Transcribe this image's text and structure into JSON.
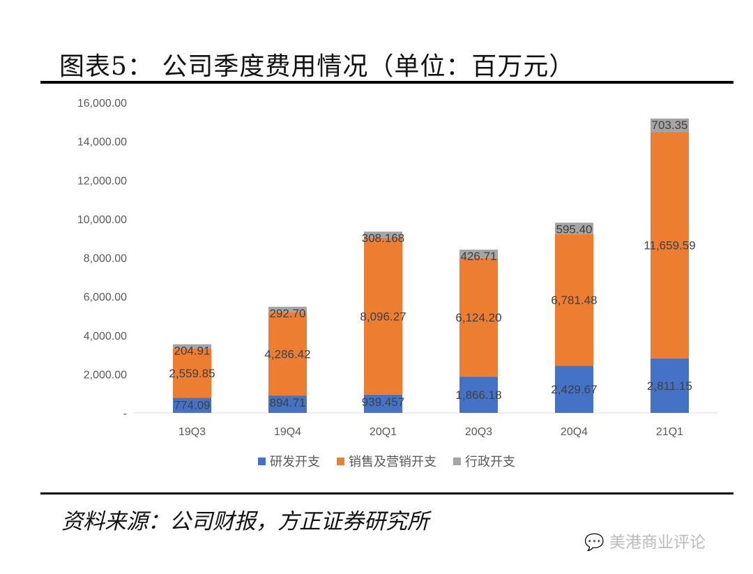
{
  "title": "图表5： 公司季度费用情况（单位：百万元）",
  "source": "资料来源：公司财报，方正证券研究所",
  "watermark": "美港商业评论",
  "chart_data": {
    "type": "bar",
    "stacked": true,
    "categories": [
      "19Q3",
      "19Q4",
      "20Q1",
      "20Q3",
      "20Q4",
      "21Q1"
    ],
    "series": [
      {
        "name": "研发开支",
        "color": "#4472C4",
        "values": [
          774.09,
          894.71,
          939.457,
          1866.18,
          2429.67,
          2811.15
        ],
        "labels": [
          "774.09",
          "894.71",
          "939.457",
          "1,866.18",
          "2,429.67",
          "2,811.15"
        ]
      },
      {
        "name": "销售及营销开支",
        "color": "#ED7D31",
        "values": [
          2559.85,
          4286.42,
          8096.27,
          6124.2,
          6781.48,
          11659.59
        ],
        "labels": [
          "2,559.85",
          "4,286.42",
          "8,096.27",
          "6,124.20",
          "6,781.48",
          "11,659.59"
        ]
      },
      {
        "name": "行政开支",
        "color": "#A5A5A5",
        "values": [
          204.91,
          292.7,
          308.168,
          426.71,
          595.4,
          703.35
        ],
        "labels": [
          "204.91",
          "292.70",
          "308.168",
          "426.71",
          "595.40",
          "703.35"
        ]
      }
    ],
    "yticks": [
      "-",
      "2,000.00",
      "4,000.00",
      "6,000.00",
      "8,000.00",
      "10,000.00",
      "12,000.00",
      "14,000.00",
      "16,000.00"
    ],
    "ylim": [
      0,
      16000
    ],
    "grid": false,
    "legend": "bottom"
  }
}
